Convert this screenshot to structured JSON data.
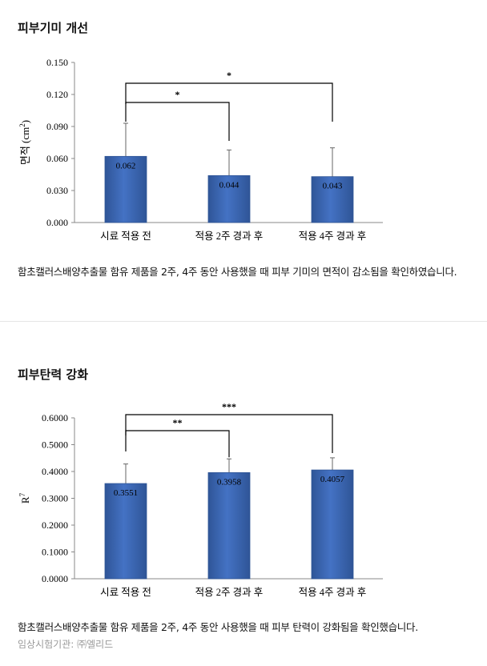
{
  "sections": [
    {
      "title": "피부기미 개선",
      "caption": "함초캘러스배양추출물 함유 제품을 2주, 4주 동안 사용했을 때 피부 기미의 면적이 감소됨을 확인하였습니다."
    },
    {
      "title": "피부탄력 강화",
      "caption": "함초캘러스배양추출물 함유 제품을 2주, 4주 동안 사용했을 때 피부 탄력이 강화됨을 확인했습니다.",
      "credit": "임상시험기관: ㈜엘리드"
    }
  ],
  "colors": {
    "bar": "#4472c4",
    "bar_dark": "#2f5597",
    "axis": "#888888"
  },
  "chart_data": [
    {
      "type": "bar",
      "categories": [
        "시료 적용 전",
        "적용 2주 경과 후",
        "적용 4주 경과 후"
      ],
      "values": [
        0.062,
        0.044,
        0.043
      ],
      "value_labels": [
        "0.062",
        "0.044",
        "0.043"
      ],
      "error_upper": [
        0.093,
        0.068,
        0.07
      ],
      "ylabel_main": "면적 (cm",
      "ylabel_sup": "2",
      "ylabel_end": ")",
      "ylim": [
        0,
        0.15
      ],
      "yticks": [
        "0.000",
        "0.030",
        "0.060",
        "0.090",
        "0.120",
        "0.150"
      ],
      "significance": [
        {
          "from": 0,
          "to": 2,
          "label": "*"
        },
        {
          "from": 0,
          "to": 1,
          "label": "*"
        }
      ]
    },
    {
      "type": "bar",
      "categories": [
        "시료 적용 전",
        "적용 2주 경과 후",
        "적용 4주 경과 후"
      ],
      "values": [
        0.3551,
        0.3958,
        0.4057
      ],
      "value_labels": [
        "0.3551",
        "0.3958",
        "0.4057"
      ],
      "error_upper": [
        0.428,
        0.447,
        0.451
      ],
      "ylabel_main": "R",
      "ylabel_sup": "7",
      "ylabel_end": "",
      "ylim": [
        0,
        0.6
      ],
      "yticks": [
        "0.0000",
        "0.1000",
        "0.2000",
        "0.3000",
        "0.4000",
        "0.5000",
        "0.6000"
      ],
      "significance": [
        {
          "from": 0,
          "to": 2,
          "label": "***"
        },
        {
          "from": 0,
          "to": 1,
          "label": "**"
        }
      ]
    }
  ]
}
